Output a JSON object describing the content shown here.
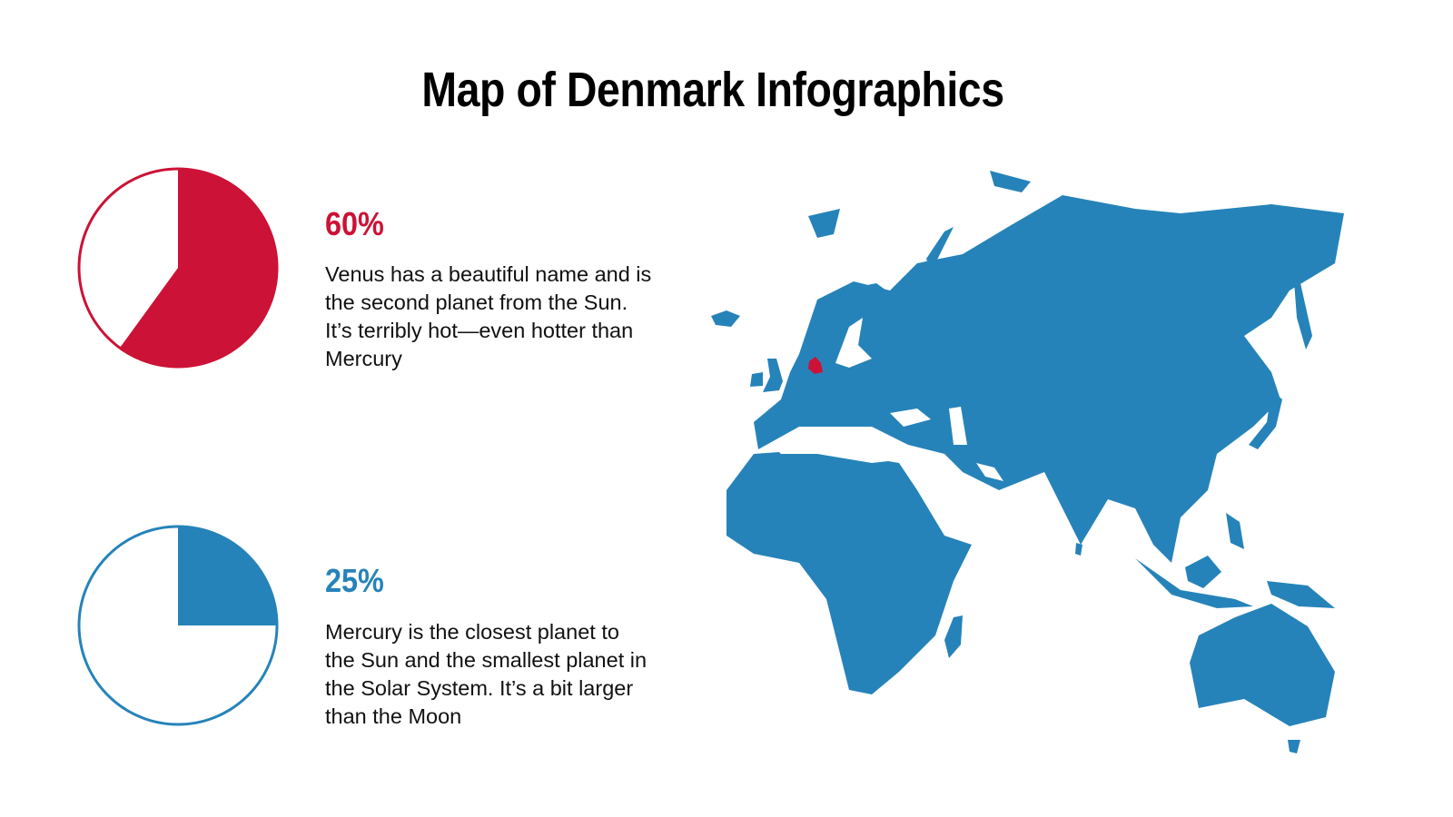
{
  "title": "Map of Denmark Infographics",
  "colors": {
    "red": "#CC1236",
    "blue": "#2683B9"
  },
  "chart_data": [
    {
      "type": "pie",
      "values": [
        60,
        40
      ],
      "highlight_color": "#CC1236",
      "label": "60%",
      "description": "Venus has a beautiful name and is the second planet from the Sun. It’s terribly hot—even hotter than Mercury"
    },
    {
      "type": "pie",
      "values": [
        25,
        75
      ],
      "highlight_color": "#2683B9",
      "label": "25%",
      "description": "Mercury is the closest planet to the Sun and the smallest planet in the Solar System. It’s a bit larger than the Moon"
    }
  ],
  "map": {
    "highlighted_country": "Denmark",
    "region": "Eurasia, Africa, Australia",
    "highlight_color": "#CC1236",
    "base_color": "#2683B9"
  }
}
